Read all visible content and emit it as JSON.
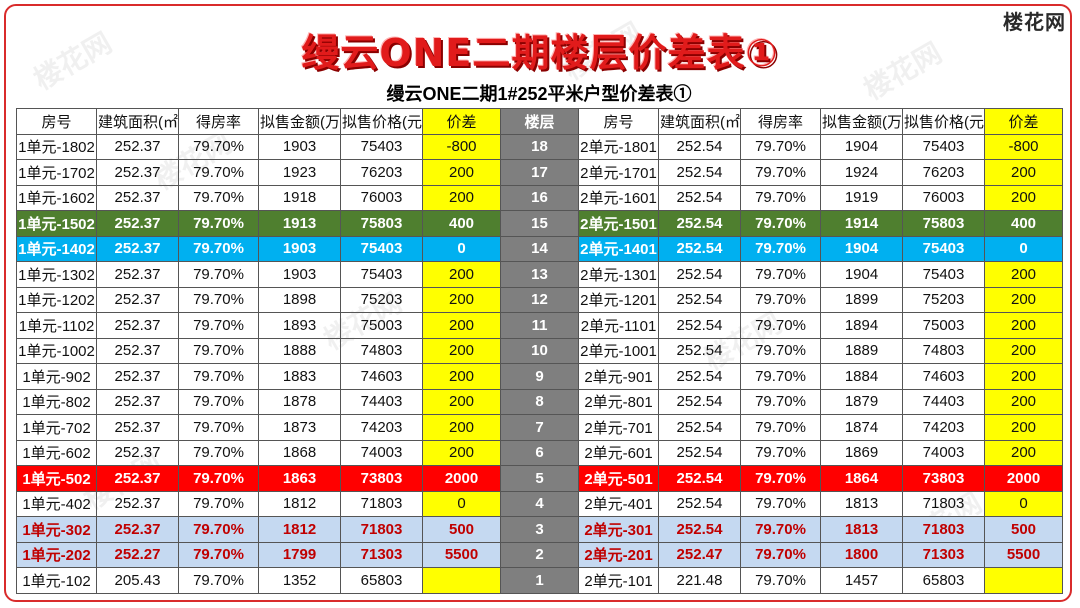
{
  "brand": "楼花网",
  "main_title": "缦云ONE二期楼层价差表①",
  "table_title": "缦云ONE二期1#252平米户型价差表①",
  "headers": [
    "房号",
    "建筑面积(㎡)",
    "得房率",
    "拟售金额(万元)",
    "拟售价格(元/㎡)",
    "价差",
    "楼层",
    "房号",
    "建筑面积(㎡)",
    "得房率",
    "拟售金额(万元)",
    "拟售价格(元/㎡)",
    "价差"
  ],
  "rows": [
    {
      "style": "",
      "cells": [
        "1单元-1802",
        "252.37",
        "79.70%",
        "1903",
        "75403",
        "-800",
        "18",
        "2单元-1801",
        "252.54",
        "79.70%",
        "1904",
        "75403",
        "-800"
      ]
    },
    {
      "style": "",
      "cells": [
        "1单元-1702",
        "252.37",
        "79.70%",
        "1923",
        "76203",
        "200",
        "17",
        "2单元-1701",
        "252.54",
        "79.70%",
        "1924",
        "76203",
        "200"
      ]
    },
    {
      "style": "",
      "cells": [
        "1单元-1602",
        "252.37",
        "79.70%",
        "1918",
        "76003",
        "200",
        "16",
        "2单元-1601",
        "252.54",
        "79.70%",
        "1919",
        "76003",
        "200"
      ]
    },
    {
      "style": "green",
      "cells": [
        "1单元-1502",
        "252.37",
        "79.70%",
        "1913",
        "75803",
        "400",
        "15",
        "2单元-1501",
        "252.54",
        "79.70%",
        "1914",
        "75803",
        "400"
      ]
    },
    {
      "style": "blue",
      "cells": [
        "1单元-1402",
        "252.37",
        "79.70%",
        "1903",
        "75403",
        "0",
        "14",
        "2单元-1401",
        "252.54",
        "79.70%",
        "1904",
        "75403",
        "0"
      ]
    },
    {
      "style": "",
      "cells": [
        "1单元-1302",
        "252.37",
        "79.70%",
        "1903",
        "75403",
        "200",
        "13",
        "2单元-1301",
        "252.54",
        "79.70%",
        "1904",
        "75403",
        "200"
      ]
    },
    {
      "style": "",
      "cells": [
        "1单元-1202",
        "252.37",
        "79.70%",
        "1898",
        "75203",
        "200",
        "12",
        "2单元-1201",
        "252.54",
        "79.70%",
        "1899",
        "75203",
        "200"
      ]
    },
    {
      "style": "",
      "cells": [
        "1单元-1102",
        "252.37",
        "79.70%",
        "1893",
        "75003",
        "200",
        "11",
        "2单元-1101",
        "252.54",
        "79.70%",
        "1894",
        "75003",
        "200"
      ]
    },
    {
      "style": "",
      "cells": [
        "1单元-1002",
        "252.37",
        "79.70%",
        "1888",
        "74803",
        "200",
        "10",
        "2单元-1001",
        "252.54",
        "79.70%",
        "1889",
        "74803",
        "200"
      ]
    },
    {
      "style": "",
      "cells": [
        "1单元-902",
        "252.37",
        "79.70%",
        "1883",
        "74603",
        "200",
        "9",
        "2单元-901",
        "252.54",
        "79.70%",
        "1884",
        "74603",
        "200"
      ]
    },
    {
      "style": "",
      "cells": [
        "1单元-802",
        "252.37",
        "79.70%",
        "1878",
        "74403",
        "200",
        "8",
        "2单元-801",
        "252.54",
        "79.70%",
        "1879",
        "74403",
        "200"
      ]
    },
    {
      "style": "",
      "cells": [
        "1单元-702",
        "252.37",
        "79.70%",
        "1873",
        "74203",
        "200",
        "7",
        "2单元-701",
        "252.54",
        "79.70%",
        "1874",
        "74203",
        "200"
      ]
    },
    {
      "style": "",
      "cells": [
        "1单元-602",
        "252.37",
        "79.70%",
        "1868",
        "74003",
        "200",
        "6",
        "2单元-601",
        "252.54",
        "79.70%",
        "1869",
        "74003",
        "200"
      ]
    },
    {
      "style": "red",
      "cells": [
        "1单元-502",
        "252.37",
        "79.70%",
        "1863",
        "73803",
        "2000",
        "5",
        "2单元-501",
        "252.54",
        "79.70%",
        "1864",
        "73803",
        "2000"
      ]
    },
    {
      "style": "",
      "cells": [
        "1单元-402",
        "252.37",
        "79.70%",
        "1812",
        "71803",
        "0",
        "4",
        "2单元-401",
        "252.54",
        "79.70%",
        "1813",
        "71803",
        "0"
      ]
    },
    {
      "style": "light",
      "cells": [
        "1单元-302",
        "252.37",
        "79.70%",
        "1812",
        "71803",
        "500",
        "3",
        "2单元-301",
        "252.54",
        "79.70%",
        "1813",
        "71803",
        "500"
      ]
    },
    {
      "style": "light",
      "cells": [
        "1单元-202",
        "252.27",
        "79.70%",
        "1799",
        "71303",
        "5500",
        "2",
        "2单元-201",
        "252.47",
        "79.70%",
        "1800",
        "71303",
        "5500"
      ]
    },
    {
      "style": "",
      "cells": [
        "1单元-102",
        "205.43",
        "79.70%",
        "1352",
        "65803",
        "",
        "1",
        "2单元-101",
        "221.48",
        "79.70%",
        "1457",
        "65803",
        ""
      ]
    }
  ]
}
